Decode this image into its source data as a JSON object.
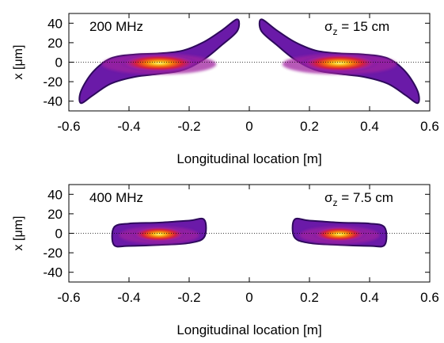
{
  "chart_data": [
    {
      "type": "heatmap",
      "panel_label": "200 MHz",
      "annotation": "σz = 15 cm",
      "annotation_symbol": "σ",
      "annotation_subscript": "z",
      "annotation_rest": " = 15 cm",
      "xlabel": "Longitudinal location [m]",
      "ylabel": "x [μm]",
      "xlim": [
        -0.6,
        0.6
      ],
      "ylim": [
        -50,
        50
      ],
      "xticks": [
        "-0.6",
        "-0.4",
        "-0.2",
        "0",
        "0.2",
        "0.4",
        "0.6"
      ],
      "yticks": [
        "-40",
        "-20",
        "0",
        "20",
        "40"
      ],
      "reference_line_y": 0,
      "colormap": [
        "#2e0a5c",
        "#6a1aa8",
        "#a020a0",
        "#d8203c",
        "#f06a10",
        "#f8c020",
        "#fff27a"
      ],
      "bunches": [
        {
          "center": -0.3,
          "x_extent": [
            -0.56,
            -0.04
          ],
          "upper_edge": [
            [
              -0.56,
              -30
            ],
            [
              -0.52,
              -10
            ],
            [
              -0.46,
              4
            ],
            [
              -0.38,
              8
            ],
            [
              -0.3,
              9
            ],
            [
              -0.22,
              12
            ],
            [
              -0.15,
              21
            ],
            [
              -0.09,
              33
            ],
            [
              -0.04,
              44
            ]
          ],
          "lower_edge": [
            [
              -0.56,
              -42
            ],
            [
              -0.52,
              -34
            ],
            [
              -0.46,
              -22
            ],
            [
              -0.38,
              -15
            ],
            [
              -0.3,
              -12
            ],
            [
              -0.22,
              -8
            ],
            [
              -0.15,
              3
            ],
            [
              -0.09,
              18
            ],
            [
              -0.04,
              32
            ]
          ],
          "core_x_halfwidth": 0.1,
          "core_y_halfwidth": 7
        },
        {
          "center": 0.3,
          "x_extent": [
            0.04,
            0.56
          ],
          "upper_edge": [
            [
              0.04,
              44
            ],
            [
              0.09,
              33
            ],
            [
              0.15,
              21
            ],
            [
              0.22,
              12
            ],
            [
              0.3,
              9
            ],
            [
              0.38,
              8
            ],
            [
              0.46,
              4
            ],
            [
              0.52,
              -10
            ],
            [
              0.56,
              -30
            ]
          ],
          "lower_edge": [
            [
              0.04,
              32
            ],
            [
              0.09,
              18
            ],
            [
              0.15,
              3
            ],
            [
              0.22,
              -8
            ],
            [
              0.3,
              -12
            ],
            [
              0.38,
              -15
            ],
            [
              0.46,
              -22
            ],
            [
              0.52,
              -34
            ],
            [
              0.56,
              -42
            ]
          ],
          "core_x_halfwidth": 0.1,
          "core_y_halfwidth": 7
        }
      ]
    },
    {
      "type": "heatmap",
      "panel_label": "400 MHz",
      "annotation": "σz = 7.5 cm",
      "annotation_symbol": "σ",
      "annotation_subscript": "z",
      "annotation_rest": " = 7.5 cm",
      "xlabel": "Longitudinal location [m]",
      "ylabel": "x [μm]",
      "xlim": [
        -0.6,
        0.6
      ],
      "ylim": [
        -50,
        50
      ],
      "xticks": [
        "-0.6",
        "-0.4",
        "-0.2",
        "0",
        "0.2",
        "0.4",
        "0.6"
      ],
      "yticks": [
        "-40",
        "-20",
        "0",
        "20",
        "40"
      ],
      "reference_line_y": 0,
      "colormap": [
        "#2e0a5c",
        "#6a1aa8",
        "#a020a0",
        "#d8203c",
        "#f06a10",
        "#f8c020",
        "#fff27a"
      ],
      "bunches": [
        {
          "center": -0.3,
          "x_extent": [
            -0.45,
            -0.15
          ],
          "upper_edge": [
            [
              -0.45,
              6
            ],
            [
              -0.4,
              10
            ],
            [
              -0.3,
              11
            ],
            [
              -0.2,
              13
            ],
            [
              -0.15,
              14
            ]
          ],
          "lower_edge": [
            [
              -0.45,
              -12
            ],
            [
              -0.4,
              -13
            ],
            [
              -0.3,
              -12
            ],
            [
              -0.2,
              -10
            ],
            [
              -0.15,
              -4
            ]
          ],
          "core_x_halfwidth": 0.07,
          "core_y_halfwidth": 6
        },
        {
          "center": 0.3,
          "x_extent": [
            0.15,
            0.45
          ],
          "upper_edge": [
            [
              0.15,
              14
            ],
            [
              0.2,
              13
            ],
            [
              0.3,
              11
            ],
            [
              0.4,
              10
            ],
            [
              0.45,
              6
            ]
          ],
          "lower_edge": [
            [
              0.15,
              -4
            ],
            [
              0.2,
              -10
            ],
            [
              0.3,
              -12
            ],
            [
              0.4,
              -13
            ],
            [
              0.45,
              -12
            ]
          ],
          "core_x_halfwidth": 0.07,
          "core_y_halfwidth": 6
        }
      ]
    }
  ]
}
